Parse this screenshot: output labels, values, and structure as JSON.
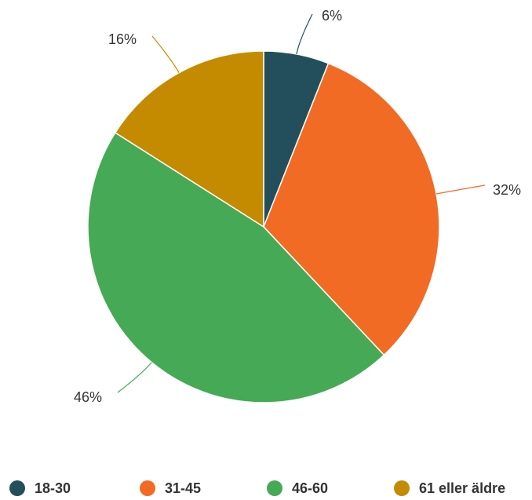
{
  "chart_data": {
    "type": "pie",
    "categories": [
      "18-30",
      "31-45",
      "46-60",
      "61 eller äldre"
    ],
    "values": [
      6,
      32,
      46,
      16
    ],
    "data_labels": [
      "6%",
      "32%",
      "46%",
      "16%"
    ],
    "colors": [
      "#234f5c",
      "#f26b25",
      "#46a955",
      "#c48a00"
    ],
    "start_angle_deg": 0,
    "direction": "clockwise",
    "legend_position": "bottom",
    "title": "",
    "xlabel": "",
    "ylabel": ""
  }
}
